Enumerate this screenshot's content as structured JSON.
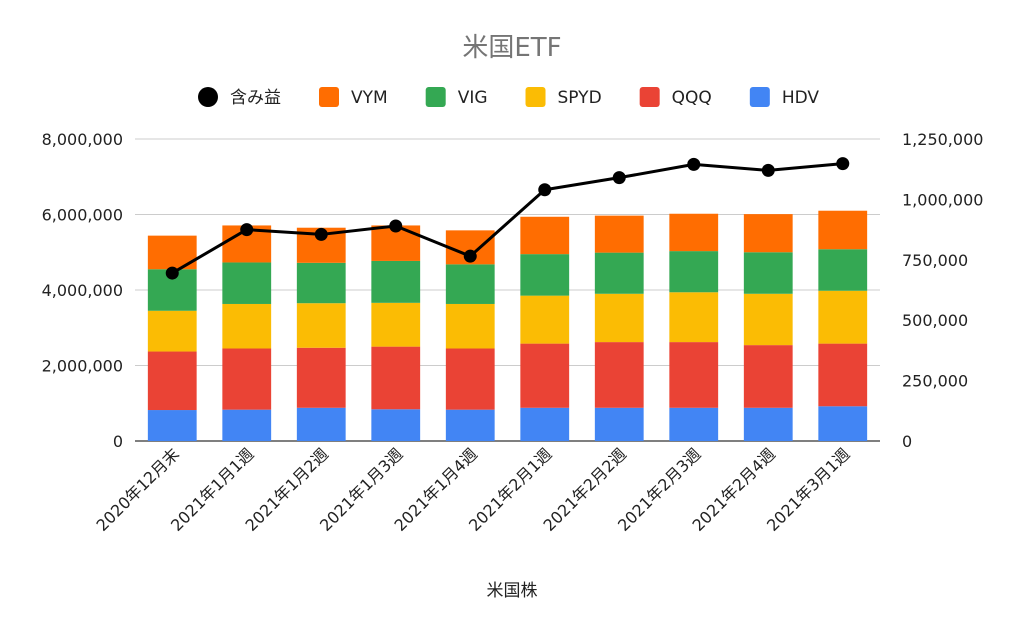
{
  "chart_data": {
    "type": "bar",
    "stacked": true,
    "title": "米国ETF",
    "xlabel": "米国株",
    "ylabel": "",
    "y2label": "",
    "categories": [
      "2020年12月末",
      "2021年1月1週",
      "2021年1月2週",
      "2021年1月3週",
      "2021年1月4週",
      "2021年2月1週",
      "2021年2月2週",
      "2021年2月3週",
      "2021年2月4週",
      "2021年3月1週"
    ],
    "ylim": [
      0,
      8000000
    ],
    "y_ticks": [
      "0",
      "2,000,000",
      "4,000,000",
      "6,000,000",
      "8,000,000"
    ],
    "y2lim": [
      0,
      1250000
    ],
    "y2_ticks": [
      "0",
      "250,000",
      "500,000",
      "750,000",
      "1,000,000",
      "1,250,000"
    ],
    "legend_position": "top",
    "grid": true,
    "series": [
      {
        "name": "HDV",
        "color": "#4285f4",
        "values": [
          820000,
          830000,
          880000,
          840000,
          830000,
          880000,
          880000,
          880000,
          880000,
          920000
        ]
      },
      {
        "name": "QQQ",
        "color": "#ea4335",
        "values": [
          1550000,
          1620000,
          1590000,
          1660000,
          1620000,
          1700000,
          1740000,
          1740000,
          1660000,
          1660000
        ]
      },
      {
        "name": "SPYD",
        "color": "#fbbc04",
        "values": [
          1080000,
          1180000,
          1180000,
          1160000,
          1180000,
          1270000,
          1280000,
          1320000,
          1360000,
          1400000
        ]
      },
      {
        "name": "VIG",
        "color": "#34a853",
        "values": [
          1100000,
          1100000,
          1070000,
          1110000,
          1050000,
          1100000,
          1090000,
          1090000,
          1100000,
          1100000
        ]
      },
      {
        "name": "VYM",
        "color": "#ff6d01",
        "values": [
          890000,
          980000,
          930000,
          940000,
          900000,
          990000,
          980000,
          990000,
          1010000,
          1020000
        ]
      }
    ],
    "line_series": {
      "name": "含み益",
      "color": "#000000",
      "axis": "right",
      "values": [
        695000,
        875000,
        855000,
        890000,
        765000,
        1040000,
        1090000,
        1145000,
        1120000,
        1148000
      ]
    },
    "legend_order": [
      "含み益",
      "VYM",
      "VIG",
      "SPYD",
      "QQQ",
      "HDV"
    ]
  }
}
